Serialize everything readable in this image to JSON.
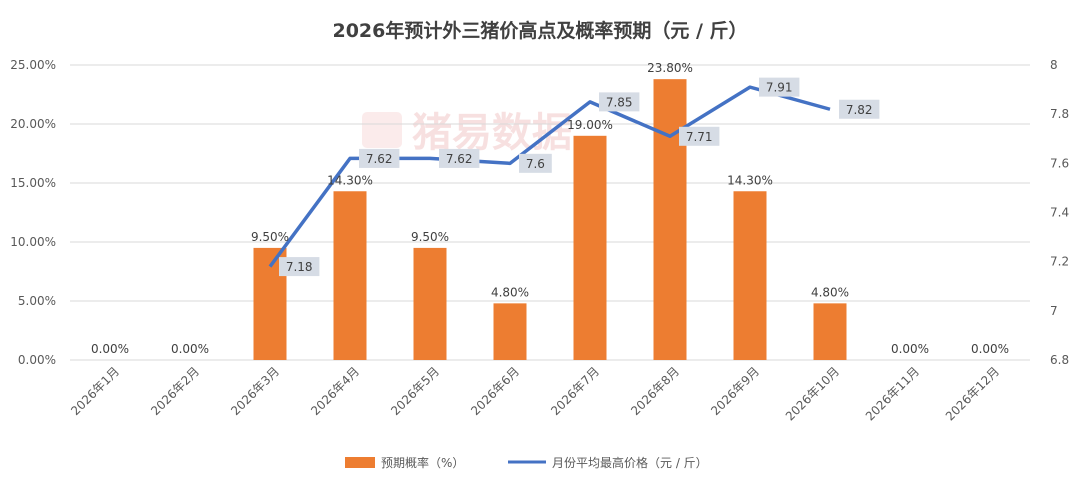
{
  "chart_data": {
    "type": "bar+line",
    "title": "2026年预计外三猪价高点及概率预期（元 / 斤）",
    "categories": [
      "2026年1月",
      "2026年2月",
      "2026年3月",
      "2026年4月",
      "2026年5月",
      "2026年6月",
      "2026年7月",
      "2026年8月",
      "2026年9月",
      "2026年10月",
      "2026年11月",
      "2026年12月"
    ],
    "bar_series": {
      "name": "预期概率（%）",
      "values": [
        0.0,
        0.0,
        9.5,
        14.3,
        9.5,
        4.8,
        19.0,
        23.8,
        14.3,
        4.8,
        0.0,
        0.0
      ],
      "labels": [
        "0.00%",
        "0.00%",
        "9.50%",
        "14.30%",
        "9.50%",
        "4.80%",
        "19.00%",
        "23.80%",
        "14.30%",
        "4.80%",
        "0.00%",
        "0.00%"
      ],
      "color": "#ED7D31"
    },
    "line_series": {
      "name": "月份平均最高价格（元 / 斤）",
      "values": [
        null,
        null,
        7.18,
        7.62,
        7.62,
        7.6,
        7.85,
        7.71,
        7.91,
        7.82,
        null,
        null
      ],
      "labels": [
        "",
        "",
        "7.18",
        "7.62",
        "7.62",
        "7.6",
        "7.85",
        "7.71",
        "7.91",
        "7.82",
        "",
        ""
      ],
      "color": "#4472C4"
    },
    "y_left": {
      "min": 0,
      "max": 25,
      "ticks": [
        "0.00%",
        "5.00%",
        "10.00%",
        "15.00%",
        "20.00%",
        "25.00%"
      ]
    },
    "y_right": {
      "min": 6.8,
      "max": 8.0,
      "ticks": [
        "6.8",
        "7",
        "7.2",
        "7.4",
        "7.6",
        "7.8",
        "8"
      ]
    },
    "legend_position": "bottom",
    "watermark": "猪易数据",
    "grid": true
  },
  "colors": {
    "grid": "#D9D9D9",
    "label_box": "#D6DCE5"
  }
}
